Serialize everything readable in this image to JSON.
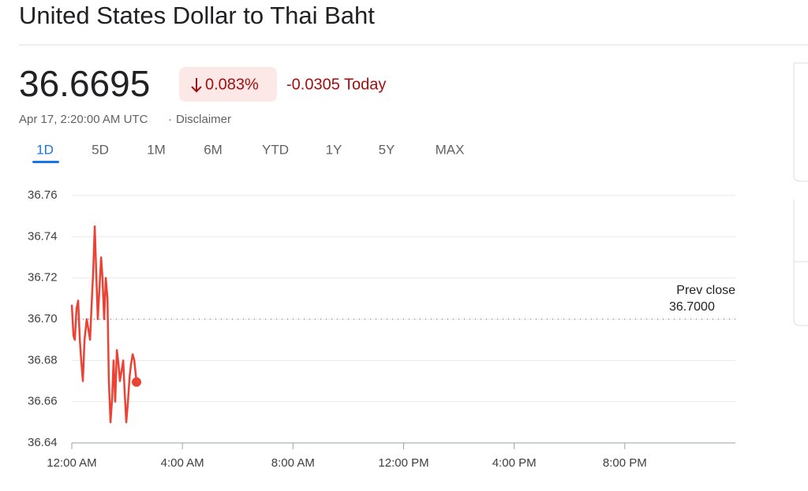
{
  "header": {
    "title": "United States Dollar to Thai Baht"
  },
  "quote": {
    "price": "36.6695",
    "change_percent": "0.083%",
    "change_today": "-0.0305 Today",
    "timestamp": "Apr 17, 2:20:00 AM UTC",
    "separator": "·",
    "disclaimer": "Disclaimer"
  },
  "tabs": [
    "1D",
    "5D",
    "1M",
    "6M",
    "YTD",
    "1Y",
    "5Y",
    "MAX"
  ],
  "chart_data": {
    "type": "line",
    "x": [
      0,
      0.06,
      0.11,
      0.17,
      0.23,
      0.29,
      0.34,
      0.4,
      0.46,
      0.54,
      0.6,
      0.66,
      0.71,
      0.77,
      0.83,
      0.89,
      0.94,
      1.0,
      1.06,
      1.11,
      1.17,
      1.23,
      1.29,
      1.34,
      1.4,
      1.46,
      1.51,
      1.57,
      1.63,
      1.69,
      1.74,
      1.8,
      1.86,
      1.91,
      1.97,
      2.03,
      2.09,
      2.14,
      2.2,
      2.26,
      2.34
    ],
    "series": [
      {
        "name": "USD/THB",
        "color": "#ea4335",
        "values": [
          36.707,
          36.692,
          36.69,
          36.705,
          36.709,
          36.69,
          36.68,
          36.67,
          36.69,
          36.7,
          36.695,
          36.69,
          36.705,
          36.722,
          36.745,
          36.72,
          36.7,
          36.715,
          36.73,
          36.72,
          36.7,
          36.72,
          36.71,
          36.67,
          36.65,
          36.662,
          36.68,
          36.66,
          36.685,
          36.678,
          36.67,
          36.675,
          36.68,
          36.665,
          36.65,
          36.66,
          36.672,
          36.678,
          36.683,
          36.68,
          36.6695
        ]
      }
    ],
    "xlim": [
      0,
      24
    ],
    "xticks": [
      {
        "value": 0,
        "label": "12:00 AM"
      },
      {
        "value": 4,
        "label": "4:00 AM"
      },
      {
        "value": 8,
        "label": "8:00 AM"
      },
      {
        "value": 12,
        "label": "12:00 PM"
      },
      {
        "value": 16,
        "label": "4:00 PM"
      },
      {
        "value": 20,
        "label": "8:00 PM"
      }
    ],
    "ylim": [
      36.64,
      36.76
    ],
    "yticks": [
      36.64,
      36.66,
      36.68,
      {
        "value": 36.7,
        "label": "36.70"
      },
      36.72,
      36.74,
      36.76
    ],
    "grid": true,
    "reference_line": {
      "label": "Prev close",
      "value": 36.7,
      "value_label": "36.7000"
    }
  }
}
